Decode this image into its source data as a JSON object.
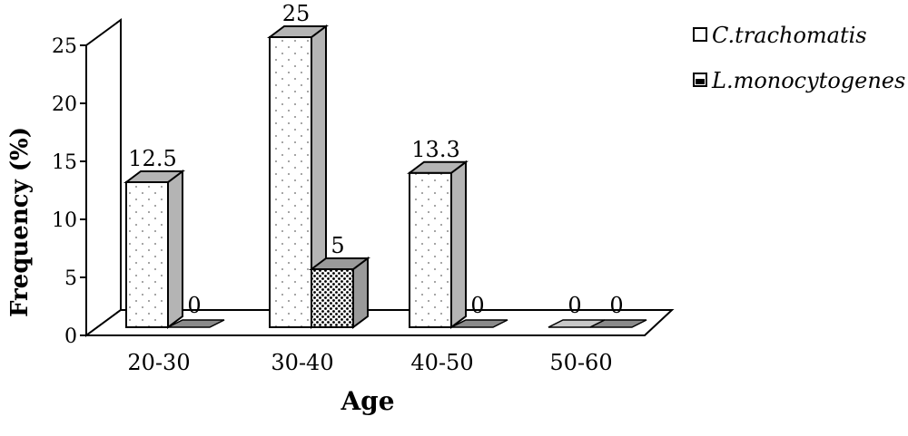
{
  "chart_data": {
    "type": "bar",
    "categories": [
      "20-30",
      "30-40",
      "40-50",
      "50-60"
    ],
    "series": [
      {
        "name": "C.trachomatis",
        "values": [
          12.5,
          25,
          13.3,
          0
        ],
        "labels": [
          "12.5",
          "25",
          "13.3",
          "0"
        ],
        "pattern": "dotted-light",
        "side_color": "#b4b4b4"
      },
      {
        "name": "L.monocytogenes",
        "values": [
          0,
          5,
          0,
          0
        ],
        "labels": [
          "0",
          "5",
          "0",
          "0"
        ],
        "pattern": "dotted-dark",
        "side_color": "#9a9a9a"
      }
    ],
    "ylabel": "Frequency (%)",
    "xlabel": "Age",
    "ylim": [
      0,
      25
    ],
    "yticks": [
      "0",
      "5",
      "10",
      "15",
      "20",
      "25"
    ],
    "style": "3d-column",
    "legend_position": "top-right"
  }
}
